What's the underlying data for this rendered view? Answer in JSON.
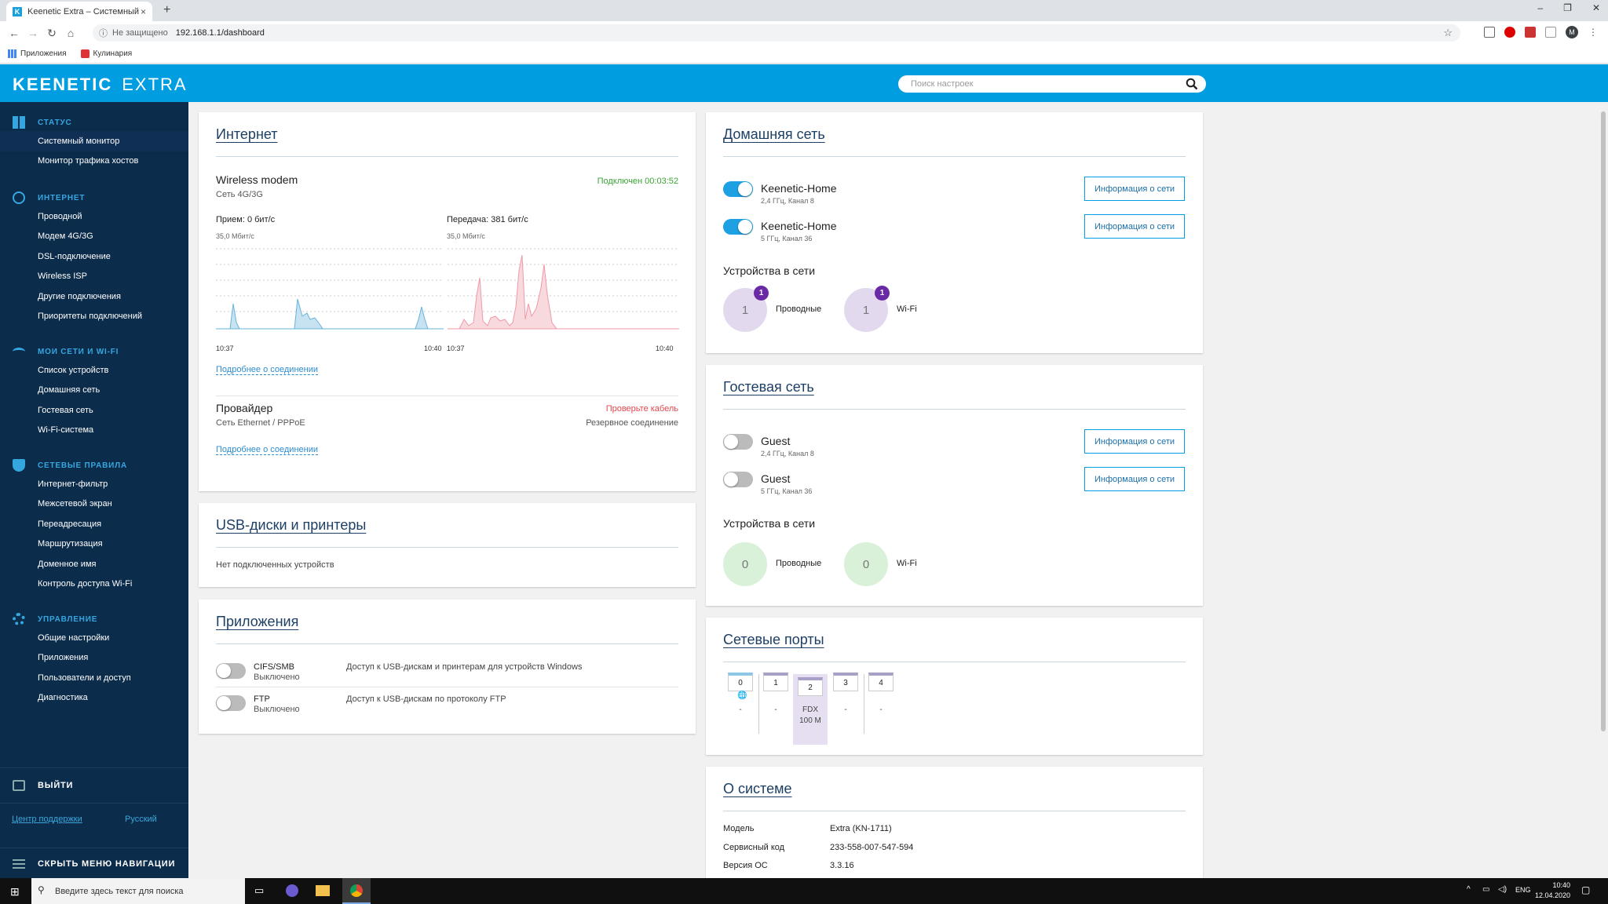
{
  "browser": {
    "tab_title": "Keenetic Extra – Системный мон",
    "tab_close": "×",
    "new_tab": "+",
    "security": "Не защищено",
    "url": "192.168.1.1/dashboard",
    "bookmarks": [
      "Приложения",
      "Кулинария"
    ],
    "window_controls": [
      "–",
      "❐",
      "✕"
    ],
    "profile_initial": "M"
  },
  "header": {
    "logo_main": "KEENETIC",
    "logo_model": "EXTRA",
    "search_placeholder": "Поиск настроек",
    "accent": "#009ee0"
  },
  "sidebar": {
    "groups": [
      {
        "title": "СТАТУС",
        "icon": "dashboard-icon",
        "items": [
          "Системный монитор",
          "Монитор трафика хостов"
        ]
      },
      {
        "title": "ИНТЕРНЕТ",
        "icon": "globe-icon",
        "items": [
          "Проводной",
          "Модем 4G/3G",
          "DSL-подключение",
          "Wireless ISP",
          "Другие подключения",
          "Приоритеты подключений"
        ]
      },
      {
        "title": "МОИ СЕТИ И WI-FI",
        "icon": "wifi-icon",
        "items": [
          "Список устройств",
          "Домашняя сеть",
          "Гостевая сеть",
          "Wi-Fi-система"
        ]
      },
      {
        "title": "СЕТЕВЫЕ ПРАВИЛА",
        "icon": "shield-icon",
        "items": [
          "Интернет-фильтр",
          "Межсетевой экран",
          "Переадресация",
          "Маршрутизация",
          "Доменное имя",
          "Контроль доступа Wi-Fi"
        ]
      },
      {
        "title": "УПРАВЛЕНИЕ",
        "icon": "gear-icon",
        "items": [
          "Общие настройки",
          "Приложения",
          "Пользователи и доступ",
          "Диагностика"
        ]
      }
    ],
    "logout": "ВЫЙТИ",
    "support": "Центр поддержки",
    "language": "Русский",
    "hide_nav": "СКРЫТЬ МЕНЮ НАВИГАЦИИ"
  },
  "internet": {
    "title": "Интернет",
    "conn_name": "Wireless modem",
    "conn_type": "Сеть 4G/3G",
    "conn_status": "Подключен 00:03:52",
    "rx_label": "Прием: 0 бит/с",
    "tx_label": "Передача: 381 бит/с",
    "rx_scale": "35,0 Мбит/с",
    "tx_scale": "35,0 Мбит/с",
    "rx_times": [
      "10:37",
      "10:40"
    ],
    "tx_times": [
      "10:37",
      "10:40"
    ],
    "details_link": "Подробнее о соединении",
    "provider_name": "Провайдер",
    "provider_type": "Сеть Ethernet / PPPoE",
    "provider_status": "Проверьте кабель",
    "provider_role": "Резервное соединение",
    "provider_link": "Подробнее о соединении",
    "status_ok_color": "#3aa335",
    "status_err_color": "#e0484e"
  },
  "usb": {
    "title": "USB-диски и принтеры",
    "empty": "Нет подключенных устройств"
  },
  "apps": {
    "title": "Приложения",
    "items": [
      {
        "name": "CIFS/SMB",
        "state": "Выключено",
        "desc": "Доступ к USB-дискам и принтерам для устройств Windows"
      },
      {
        "name": "FTP",
        "state": "Выключено",
        "desc": "Доступ к USB-дискам по протоколу FTP"
      }
    ]
  },
  "home": {
    "title": "Домашняя сеть",
    "networks": [
      {
        "name": "Keenetic-Home",
        "info": "2,4 ГГц, Канал 8",
        "button": "Информация о сети",
        "enabled": true
      },
      {
        "name": "Keenetic-Home",
        "info": "5 ГГц, Канал 36",
        "button": "Информация о сети",
        "enabled": true
      }
    ],
    "devices_title": "Устройства в сети",
    "wired_count": "1",
    "wired_badge": "1",
    "wired_label": "Проводные",
    "wifi_count": "1",
    "wifi_badge": "1",
    "wifi_label": "Wi-Fi"
  },
  "guest": {
    "title": "Гостевая сеть",
    "networks": [
      {
        "name": "Guest",
        "info": "2,4 ГГц, Канал 8",
        "button": "Информация о сети",
        "enabled": false
      },
      {
        "name": "Guest",
        "info": "5 ГГц, Канал 36",
        "button": "Информация о сети",
        "enabled": false
      }
    ],
    "devices_title": "Устройства в сети",
    "wired_count": "0",
    "wired_label": "Проводные",
    "wifi_count": "0",
    "wifi_label": "Wi-Fi"
  },
  "ports": {
    "title": "Сетевые порты",
    "items": [
      {
        "num": "0",
        "status": "-",
        "wan": true
      },
      {
        "num": "1",
        "status": "-"
      },
      {
        "num": "2",
        "status": "FDX",
        "speed": "100 M",
        "active": true
      },
      {
        "num": "3",
        "status": "-"
      },
      {
        "num": "4",
        "status": "-"
      }
    ]
  },
  "system": {
    "title": "О системе",
    "rows": [
      {
        "label": "Модель",
        "value": "Extra (KN-1711)"
      },
      {
        "label": "Сервисный код",
        "value": "233-558-007-547-594"
      },
      {
        "label": "Версия ОС",
        "value": "3.3.16"
      }
    ]
  },
  "taskbar": {
    "search": "Введите здесь текст для поиска",
    "lang": "ENG",
    "time": "10:40",
    "date": "12.04.2020"
  }
}
